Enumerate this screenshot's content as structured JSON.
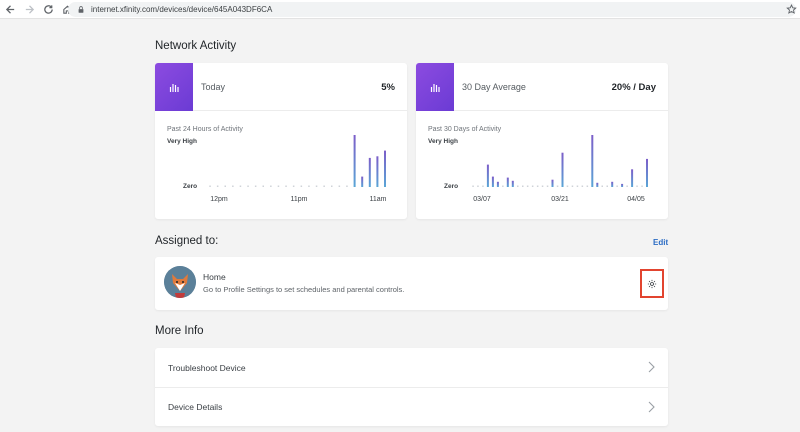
{
  "browser": {
    "url": "internet.xfinity.com/devices/device/645A043DF6CA"
  },
  "network_activity": {
    "title": "Network Activity",
    "today": {
      "label": "Today",
      "value": "5%",
      "subtitle": "Past 24 Hours of Activity",
      "y_high": "Very High",
      "y_low": "Zero",
      "x_ticks": [
        "12pm",
        "11pm",
        "11am"
      ]
    },
    "average": {
      "label": "30 Day Average",
      "value": "20% / Day",
      "subtitle": "Past 30 Days of Activity",
      "y_high": "Very High",
      "y_low": "Zero",
      "x_ticks": [
        "03/07",
        "03/21",
        "04/05"
      ]
    }
  },
  "chart_data": [
    {
      "type": "bar",
      "title": "Past 24 Hours of Activity",
      "ylabel": "",
      "ylim": [
        0,
        100
      ],
      "y_tick_labels": [
        "Zero",
        "Very High"
      ],
      "x_tick_labels": [
        "12pm",
        "11pm",
        "11am"
      ],
      "values": [
        0,
        0,
        0,
        0,
        0,
        0,
        0,
        0,
        0,
        0,
        0,
        0,
        0,
        0,
        0,
        0,
        0,
        0,
        0,
        100,
        20,
        56,
        59,
        70
      ]
    },
    {
      "type": "bar",
      "title": "Past 30 Days of Activity",
      "ylabel": "",
      "ylim": [
        0,
        100
      ],
      "y_tick_labels": [
        "Zero",
        "Very High"
      ],
      "x_tick_labels": [
        "03/07",
        "03/21",
        "04/05"
      ],
      "values": [
        0,
        0,
        0,
        43,
        20,
        10,
        0,
        18,
        12,
        0,
        0,
        0,
        0,
        0,
        0,
        0,
        14,
        0,
        66,
        0,
        0,
        0,
        0,
        0,
        100,
        8,
        0,
        0,
        10,
        0,
        6,
        0,
        34,
        0,
        0,
        54
      ]
    }
  ],
  "assigned": {
    "title": "Assigned to:",
    "edit_label": "Edit",
    "profile_name": "Home",
    "profile_desc": "Go to Profile Settings to set schedules and parental controls."
  },
  "more_info": {
    "title": "More Info",
    "items": [
      "Troubleshoot Device",
      "Device Details"
    ]
  },
  "colors": {
    "accent": "#7b44da",
    "bar_top": "#7c5ec9",
    "bar_bottom": "#5aa6d6",
    "link": "#2b6cc4",
    "highlight": "#e2442f"
  }
}
